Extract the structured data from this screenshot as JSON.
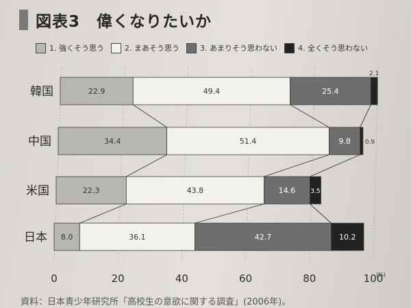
{
  "title_prefix": "図表3",
  "title": "偉くなりたいか",
  "legend": [
    {
      "label": "1. 強くそう思う",
      "color": "#b8b6b3"
    },
    {
      "label": "2. まあそう思う",
      "color": "#f4f2ee"
    },
    {
      "label": "3. あまりそう思わない",
      "color": "#6f6e6e"
    },
    {
      "label": "4. 全くそう思わない",
      "color": "#222222"
    }
  ],
  "source": "資料：日本青少年研究所「高校生の意欲に関する調査」(2006年)。",
  "chart_data": {
    "type": "bar",
    "orientation": "horizontal-stacked",
    "categories": [
      "韓国",
      "中国",
      "米国",
      "日本"
    ],
    "series": [
      {
        "name": "1. 強くそう思う",
        "values": [
          22.9,
          34.4,
          22.3,
          8.0
        ]
      },
      {
        "name": "2. まあそう思う",
        "values": [
          49.4,
          51.4,
          43.8,
          36.1
        ]
      },
      {
        "name": "3. あまりそう思わない",
        "values": [
          25.4,
          9.8,
          14.6,
          42.7
        ]
      },
      {
        "name": "4. 全くそう思わない",
        "values": [
          2.1,
          0.9,
          3.5,
          10.2
        ]
      }
    ],
    "value_labels": [
      [
        "22.9",
        "49.4",
        "25.4",
        "2.1"
      ],
      [
        "34.4",
        "51.4",
        "9.8",
        "0.9"
      ],
      [
        "22.3",
        "43.8",
        "14.6",
        "3.5"
      ],
      [
        "8.0",
        "36.1",
        "42.7",
        "10.2"
      ]
    ],
    "xticks": [
      "0",
      "20",
      "40",
      "60",
      "80",
      "100"
    ],
    "xtick_values": [
      0,
      20,
      40,
      60,
      80,
      100
    ],
    "unit": "(%)",
    "xlim": [
      0,
      100
    ],
    "connector_lines": true
  }
}
